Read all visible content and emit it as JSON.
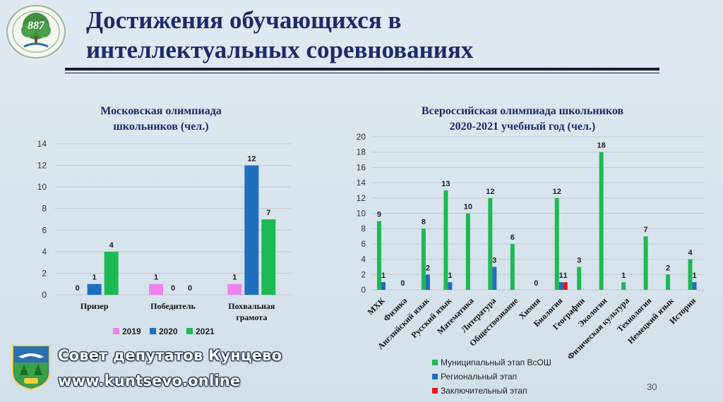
{
  "header": {
    "title_line1": "Достижения обучающихся в",
    "title_line2": "интеллектуальных соревнованиях",
    "logo_text": "887"
  },
  "footer": {
    "council": "Совет депутатов Кунцево",
    "site": "www.kuntsevo.online",
    "page": "30"
  },
  "chart_data": [
    {
      "type": "bar",
      "title_lines": [
        "Московская олимпиада",
        "школьников (чел.)"
      ],
      "categories": [
        "Призер",
        "Победитель",
        "Похвальная грамота"
      ],
      "category_lines": [
        [
          "Призер"
        ],
        [
          "Победитель"
        ],
        [
          "Похвальная",
          "грамота"
        ]
      ],
      "series": [
        {
          "name": "2019",
          "color": "#ee82ee",
          "values": [
            0,
            1,
            1
          ]
        },
        {
          "name": "2020",
          "color": "#1f6fbf",
          "values": [
            1,
            0,
            12
          ]
        },
        {
          "name": "2021",
          "color": "#1db954",
          "values": [
            4,
            0,
            7
          ]
        }
      ],
      "ylim": [
        0,
        14
      ],
      "yticks": [
        0,
        2,
        4,
        6,
        8,
        10,
        12,
        14
      ],
      "grid": true,
      "legend": "bottom"
    },
    {
      "type": "bar",
      "title_lines": [
        "Всероссийская олимпиада школьников",
        "2020-2021 учебный год (чел.)"
      ],
      "categories": [
        "МХК",
        "Физика",
        "Английский язык",
        "Русский язык",
        "Математика",
        "Литература",
        "Обществознание",
        "Химия",
        "Биология",
        "Географии",
        "Экологии",
        "Физическая культура",
        "Технология",
        "Немецкий язык",
        "Истории"
      ],
      "series": [
        {
          "name": "Муниципальный этап ВсОШ",
          "color": "#1db954",
          "values": [
            9,
            0,
            8,
            13,
            10,
            12,
            6,
            0,
            12,
            3,
            18,
            1,
            7,
            2,
            4
          ]
        },
        {
          "name": "Региональный этап",
          "color": "#1f6fbf",
          "values": [
            1,
            0,
            2,
            1,
            0,
            3,
            0,
            0,
            1,
            0,
            0,
            0,
            0,
            0,
            1
          ]
        },
        {
          "name": "Заключительный этап",
          "color": "#e8141c",
          "values": [
            0,
            0,
            0,
            0,
            0,
            0,
            0,
            0,
            1,
            0,
            0,
            0,
            0,
            0,
            0
          ]
        }
      ],
      "ylim": [
        0,
        20
      ],
      "yticks": [
        0,
        2,
        4,
        6,
        8,
        10,
        12,
        14,
        16,
        18,
        20
      ],
      "grid": true,
      "legend": "bottom"
    }
  ]
}
